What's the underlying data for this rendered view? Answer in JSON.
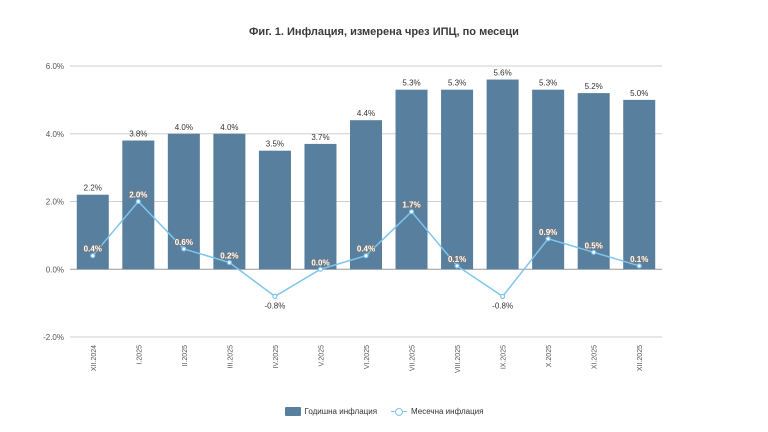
{
  "title": "Фиг. 1. Инфлация, измерена чрез ИПЦ, по месеци",
  "legend": {
    "bar_label": "Годишна инфлация",
    "line_label": "Месечна инфлация"
  },
  "colors": {
    "bar": "#587f9d",
    "line": "#7ec5ee",
    "grid": "#cfcfcf"
  },
  "chart_data": {
    "type": "bar",
    "title": "Фиг. 1. Инфлация, измерена чрез ИПЦ, по месеци",
    "categories": [
      "XII.2024",
      "I.2025",
      "II.2025",
      "III.2025",
      "IV.2025",
      "V.2025",
      "VI.2025",
      "VII.2025",
      "VIII.2025",
      "IX.2025",
      "X.2025",
      "XI.2025",
      "XII.2025"
    ],
    "series": [
      {
        "name": "Годишна инфлация",
        "kind": "bar",
        "values": [
          2.2,
          3.8,
          4.0,
          4.0,
          3.5,
          3.7,
          4.4,
          5.3,
          5.3,
          5.6,
          5.3,
          5.2,
          5.0
        ],
        "labels": [
          "2.2%",
          "3.8%",
          "4.0%",
          "4.0%",
          "3.5%",
          "3.7%",
          "4.4%",
          "5.3%",
          "5.3%",
          "5.6%",
          "5.3%",
          "5.2%",
          "5.0%"
        ]
      },
      {
        "name": "Месечна инфлация",
        "kind": "line",
        "values": [
          0.4,
          2.0,
          0.6,
          0.2,
          -0.8,
          0.0,
          0.4,
          1.7,
          0.1,
          -0.8,
          0.9,
          0.5,
          0.1
        ],
        "labels": [
          "0.4%",
          "2.0%",
          "0.6%",
          "0.2%",
          "-0.8%",
          "0.0%",
          "0.4%",
          "1.7%",
          "0.1%",
          "-0.8%",
          "0.9%",
          "0.5%",
          "0.1%"
        ]
      }
    ],
    "ylim": [
      -2.0,
      6.0
    ],
    "yticks": [
      -2.0,
      0.0,
      2.0,
      4.0,
      6.0
    ],
    "ytick_labels": [
      "-2.0%",
      "0.0%",
      "2.0%",
      "4.0%",
      "6.0%"
    ],
    "xlabel": "",
    "ylabel": "",
    "grid": true,
    "legend_position": "bottom-center"
  }
}
